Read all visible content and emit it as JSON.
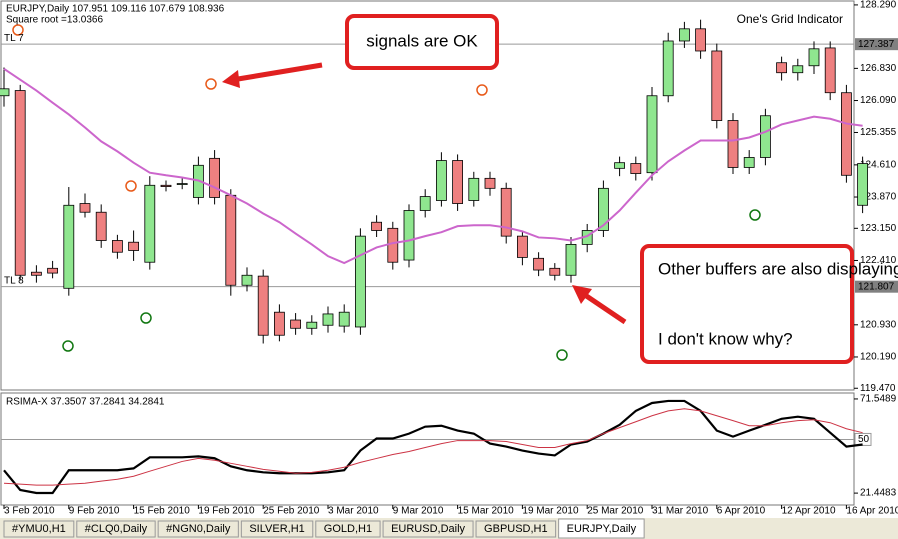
{
  "chart_data": [
    {
      "type": "candlestick",
      "title": "EURJPY,Daily  107.951 109.116 107.679 108.936",
      "subtitle": "Square root =13.0366",
      "indicator": "One's Grid Indicator",
      "categories": [
        "3 Feb 2010",
        null,
        null,
        null,
        "9 Feb 2010",
        null,
        null,
        null,
        "15 Feb 2010",
        null,
        null,
        null,
        "19 Feb 2010",
        null,
        null,
        null,
        "25 Feb 2010",
        null,
        null,
        null,
        "3 Mar 2010",
        null,
        null,
        null,
        "9 Mar 2010",
        null,
        null,
        null,
        "15 Mar 2010",
        null,
        null,
        null,
        "19 Mar 2010",
        null,
        null,
        null,
        "25 Mar 2010",
        null,
        null,
        null,
        "31 Mar 2010",
        null,
        null,
        null,
        "6 Apr 2010",
        null,
        null,
        null,
        "12 Apr 2010",
        null,
        null,
        null,
        "16 Apr 2010",
        null
      ],
      "open": [
        126.2,
        126.32,
        122.14,
        122.23,
        121.77,
        123.72,
        123.52,
        122.87,
        122.83,
        122.37,
        124.14,
        124.16,
        123.86,
        124.76,
        123.91,
        121.84,
        122.05,
        121.22,
        121.04,
        120.85,
        120.92,
        120.9,
        120.88,
        123.29,
        123.15,
        122.42,
        123.56,
        123.79,
        124.71,
        123.79,
        124.3,
        124.07,
        122.97,
        122.46,
        122.23,
        122.07,
        122.78,
        123.1,
        124.53,
        124.64,
        124.43,
        126.2,
        127.46,
        127.74,
        127.23,
        125.63,
        124.55,
        124.78,
        126.96,
        126.73,
        126.89,
        127.3,
        126.27,
        123.68
      ],
      "high": [
        126.85,
        126.45,
        122.3,
        122.4,
        124.1,
        123.95,
        123.7,
        123.0,
        123.1,
        124.35,
        124.25,
        124.3,
        124.8,
        124.95,
        124.05,
        122.25,
        122.2,
        121.4,
        121.2,
        121.15,
        121.35,
        121.4,
        123.15,
        123.45,
        123.3,
        123.7,
        124.05,
        124.9,
        124.85,
        124.45,
        124.45,
        124.2,
        123.1,
        122.6,
        122.35,
        122.95,
        123.25,
        124.25,
        124.8,
        124.8,
        126.4,
        127.65,
        127.9,
        127.95,
        127.4,
        125.8,
        124.95,
        125.9,
        127.1,
        127.05,
        127.45,
        127.45,
        126.45,
        124.8
      ],
      "low": [
        125.95,
        121.95,
        121.9,
        122.0,
        121.6,
        123.4,
        122.7,
        122.45,
        122.4,
        122.2,
        124.0,
        124.05,
        123.7,
        123.7,
        121.6,
        121.7,
        120.5,
        120.55,
        120.7,
        120.7,
        120.75,
        120.75,
        120.7,
        122.95,
        122.2,
        122.25,
        123.4,
        123.65,
        123.55,
        123.65,
        123.9,
        122.8,
        122.3,
        122.05,
        121.95,
        121.9,
        122.6,
        122.95,
        124.35,
        124.25,
        124.25,
        126.05,
        127.3,
        127.05,
        125.45,
        124.4,
        124.4,
        124.6,
        126.55,
        126.55,
        126.7,
        126.1,
        124.2,
        123.5
      ],
      "close": [
        126.36,
        122.07,
        122.07,
        122.12,
        123.68,
        123.52,
        122.87,
        122.6,
        122.64,
        124.14,
        124.11,
        124.18,
        124.6,
        123.86,
        121.84,
        122.07,
        120.69,
        120.69,
        120.85,
        120.99,
        121.18,
        121.22,
        122.97,
        123.1,
        122.37,
        123.56,
        123.88,
        124.71,
        123.72,
        124.3,
        124.07,
        122.97,
        122.48,
        122.19,
        122.07,
        122.78,
        123.1,
        124.07,
        124.66,
        124.41,
        126.2,
        127.46,
        127.74,
        127.23,
        125.63,
        124.55,
        124.78,
        125.74,
        126.73,
        126.89,
        127.28,
        126.27,
        124.37,
        124.64
      ],
      "up_color": "#8fe68f",
      "down_color": "#ee8080",
      "ma": {
        "color": "#cc66cc",
        "values": [
          126.82,
          126.57,
          126.32,
          126.04,
          125.77,
          125.47,
          125.15,
          124.92,
          124.66,
          124.43,
          124.37,
          124.32,
          124.25,
          124.09,
          123.91,
          123.72,
          123.49,
          123.29,
          123.03,
          122.78,
          122.51,
          122.35,
          122.53,
          122.71,
          122.81,
          122.87,
          122.97,
          123.06,
          123.2,
          123.22,
          123.22,
          123.17,
          123.08,
          122.94,
          122.92,
          122.87,
          122.97,
          123.22,
          123.56,
          123.97,
          124.37,
          124.69,
          124.94,
          125.17,
          125.17,
          125.17,
          125.24,
          125.37,
          125.54,
          125.63,
          125.72,
          125.67,
          125.56,
          125.51
        ]
      },
      "levels": [
        {
          "name": "TL 7",
          "value": 127.387
        },
        {
          "name": "TL 8",
          "value": 121.807
        }
      ],
      "ylim": [
        119.43,
        128.38
      ],
      "yticks": [
        {
          "value": 128.29,
          "label": "128.290"
        },
        {
          "value": 126.83,
          "label": "126.830"
        },
        {
          "value": 126.09,
          "label": "126.090"
        },
        125.355,
        {
          "value": 124.61,
          "label": "124.610"
        },
        {
          "value": 123.87,
          "label": "123.870"
        },
        {
          "value": 123.15,
          "label": "123.150"
        },
        {
          "value": 122.41,
          "label": "122.410"
        },
        {
          "value": 120.93,
          "label": "120.930"
        },
        {
          "value": 120.19,
          "label": "120.190"
        },
        {
          "value": 119.47,
          "label": "119.470"
        }
      ],
      "annotations": [
        "signals are OK",
        "Other buffers are also displaying though.",
        "I don't know why?"
      ]
    },
    {
      "type": "line",
      "title": "RSIMA-X  37.3507 37.2841 34.2841",
      "series": [
        {
          "color": "#000000",
          "values": [
            33.6,
            23.1,
            21.5,
            21.5,
            33.6,
            33.6,
            33.6,
            33.6,
            34.6,
            40.5,
            40.5,
            40.5,
            41.0,
            40.0,
            35.7,
            33.6,
            32.5,
            32.0,
            32.0,
            32.0,
            32.5,
            33.6,
            44.1,
            50.5,
            50.5,
            53.1,
            56.8,
            57.3,
            54.7,
            53.1,
            47.8,
            46.2,
            44.1,
            42.5,
            41.5,
            47.3,
            48.9,
            53.1,
            57.8,
            65.2,
            69.4,
            70.5,
            70.5,
            65.2,
            54.7,
            51.5,
            54.7,
            57.8,
            61.0,
            62.1,
            61.0,
            53.6,
            46.2,
            47.3
          ]
        },
        {
          "color": "#cc3344",
          "values": [
            26.7,
            26.2,
            25.7,
            25.7,
            26.2,
            26.7,
            27.8,
            28.8,
            30.4,
            33.1,
            35.7,
            38.3,
            39.9,
            38.9,
            37.3,
            35.7,
            34.1,
            33.1,
            32.0,
            32.5,
            33.6,
            35.2,
            37.8,
            39.9,
            42.0,
            43.6,
            45.7,
            47.8,
            49.4,
            49.4,
            49.4,
            48.9,
            47.3,
            45.7,
            45.7,
            47.8,
            49.4,
            53.1,
            56.3,
            59.4,
            62.6,
            65.2,
            66.3,
            65.2,
            62.6,
            60.0,
            57.3,
            57.3,
            58.9,
            60.0,
            60.5,
            58.9,
            55.7,
            53.6
          ]
        }
      ],
      "level": 50,
      "ylim": [
        15.12,
        74.71
      ],
      "yticks": [
        71.5489,
        21.4483
      ]
    }
  ],
  "tabs": [
    "#YMU0,H1",
    "#CLQ0,Daily",
    "#NGN0,Daily",
    "SILVER,H1",
    "GOLD,H1",
    "EURUSD,Daily",
    "GBPUSD,H1",
    "EURJPY,Daily"
  ],
  "active_tab": 7
}
